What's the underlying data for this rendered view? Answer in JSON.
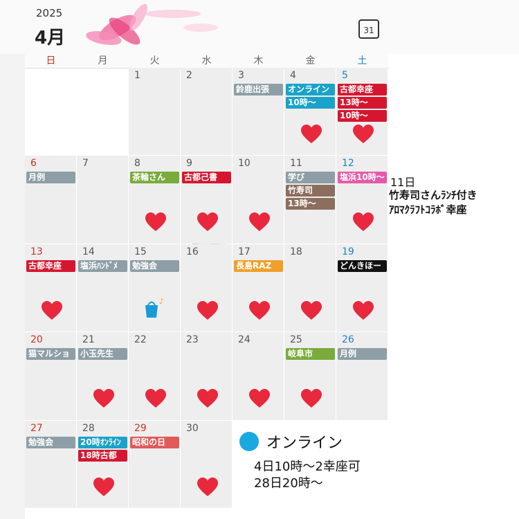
{
  "header": {
    "year": "2025",
    "month": "4月",
    "calendar_icon": "31"
  },
  "weekdays": [
    {
      "label": "日",
      "color": "#c8321e"
    },
    {
      "label": "月",
      "color": "#666666"
    },
    {
      "label": "火",
      "color": "#666666"
    },
    {
      "label": "水",
      "color": "#666666"
    },
    {
      "label": "木",
      "color": "#666666"
    },
    {
      "label": "金",
      "color": "#666666"
    },
    {
      "label": "土",
      "color": "#1f7fc2"
    }
  ],
  "watermark": "4",
  "days": [
    {
      "day": "1"
    },
    {
      "day": "2"
    },
    {
      "day": "3",
      "events": [
        {
          "text": "鈴鹿出張",
          "color": "#8e9ea6"
        }
      ]
    },
    {
      "day": "4",
      "heart": true,
      "events": [
        {
          "text": "オンライン",
          "color": "#1aa3c8"
        },
        {
          "text": "10時〜",
          "color": "#1aa3c8"
        }
      ]
    },
    {
      "day": "5",
      "color": "#1f7fc2",
      "heart": true,
      "events": [
        {
          "text": "古都幸座",
          "color": "#d4172f"
        },
        {
          "text": "13時〜",
          "color": "#d4172f"
        },
        {
          "text": "10時〜",
          "color": "#d4172f"
        }
      ]
    },
    {
      "day": "6",
      "color": "#c8321e",
      "events": [
        {
          "text": "月例",
          "color": "#8e9ea6"
        }
      ]
    },
    {
      "day": "7"
    },
    {
      "day": "8",
      "heart": true,
      "events": [
        {
          "text": "茶輪さん",
          "color": "#7aab3c"
        }
      ]
    },
    {
      "day": "9",
      "heart": true,
      "events": [
        {
          "text": "古都己書",
          "color": "#d4172f"
        }
      ]
    },
    {
      "day": "10",
      "heart": true
    },
    {
      "day": "11",
      "events": [
        {
          "text": "学び",
          "color": "#8e9ea6"
        },
        {
          "text": "竹寿司",
          "color": "#8c6e5e"
        },
        {
          "text": "13時〜",
          "color": "#8c6e5e"
        }
      ]
    },
    {
      "day": "12",
      "color": "#1f7fc2",
      "heart": true,
      "events": [
        {
          "text": "塩浜10時〜",
          "color": "#e45aa8"
        }
      ]
    },
    {
      "day": "13",
      "color": "#c8321e",
      "heart": true,
      "events": [
        {
          "text": "古都幸座",
          "color": "#d4172f"
        }
      ]
    },
    {
      "day": "14",
      "events": [
        {
          "text": "塩浜ﾊﾝﾄﾞﾒ",
          "color": "#8e9ea6"
        }
      ]
    },
    {
      "day": "15",
      "icon": "bag",
      "events": [
        {
          "text": "勉強会",
          "color": "#8e9ea6"
        }
      ]
    },
    {
      "day": "16",
      "heart": true
    },
    {
      "day": "17",
      "heart": true,
      "events": [
        {
          "text": "長島RAZ",
          "color": "#f0a02a"
        }
      ]
    },
    {
      "day": "18",
      "heart": true
    },
    {
      "day": "19",
      "color": "#1f7fc2",
      "heart": true,
      "events": [
        {
          "text": "どんきほー",
          "color": "#111111"
        }
      ]
    },
    {
      "day": "20",
      "color": "#c8321e",
      "events": [
        {
          "text": "猫マルショ",
          "color": "#8e9ea6"
        }
      ]
    },
    {
      "day": "21",
      "heart": true,
      "events": [
        {
          "text": "小玉先生",
          "color": "#8e9ea6"
        }
      ]
    },
    {
      "day": "22",
      "heart": true
    },
    {
      "day": "23",
      "heart": true
    },
    {
      "day": "24",
      "heart": true
    },
    {
      "day": "25",
      "heart": true,
      "events": [
        {
          "text": "岐阜市",
          "color": "#7aab3c"
        }
      ]
    },
    {
      "day": "26",
      "color": "#1f7fc2",
      "events": [
        {
          "text": "月例",
          "color": "#8e9ea6"
        }
      ]
    },
    {
      "day": "27",
      "color": "#c8321e",
      "events": [
        {
          "text": "勉強会",
          "color": "#8e9ea6"
        }
      ]
    },
    {
      "day": "28",
      "heart": true,
      "events": [
        {
          "text": "20時ｵﾝﾗｲﾝ",
          "color": "#1aa3c8"
        },
        {
          "text": "18時古都",
          "color": "#d4172f"
        }
      ]
    },
    {
      "day": "29",
      "color": "#c8321e",
      "events": [
        {
          "text": "昭和の日",
          "color": "#e05a5a"
        }
      ]
    },
    {
      "day": "30",
      "heart": true
    }
  ],
  "notes": {
    "side": [
      "11日",
      "竹寿司さんﾗﾝﾁ付き",
      "ｱﾛﾏｸﾗﾌﾄｺﾗﾎﾞ幸座"
    ],
    "online": {
      "title": "オンライン",
      "color": "#1aa8e0",
      "lines": [
        "4日10時〜2幸座可",
        "28日20時〜"
      ]
    }
  }
}
